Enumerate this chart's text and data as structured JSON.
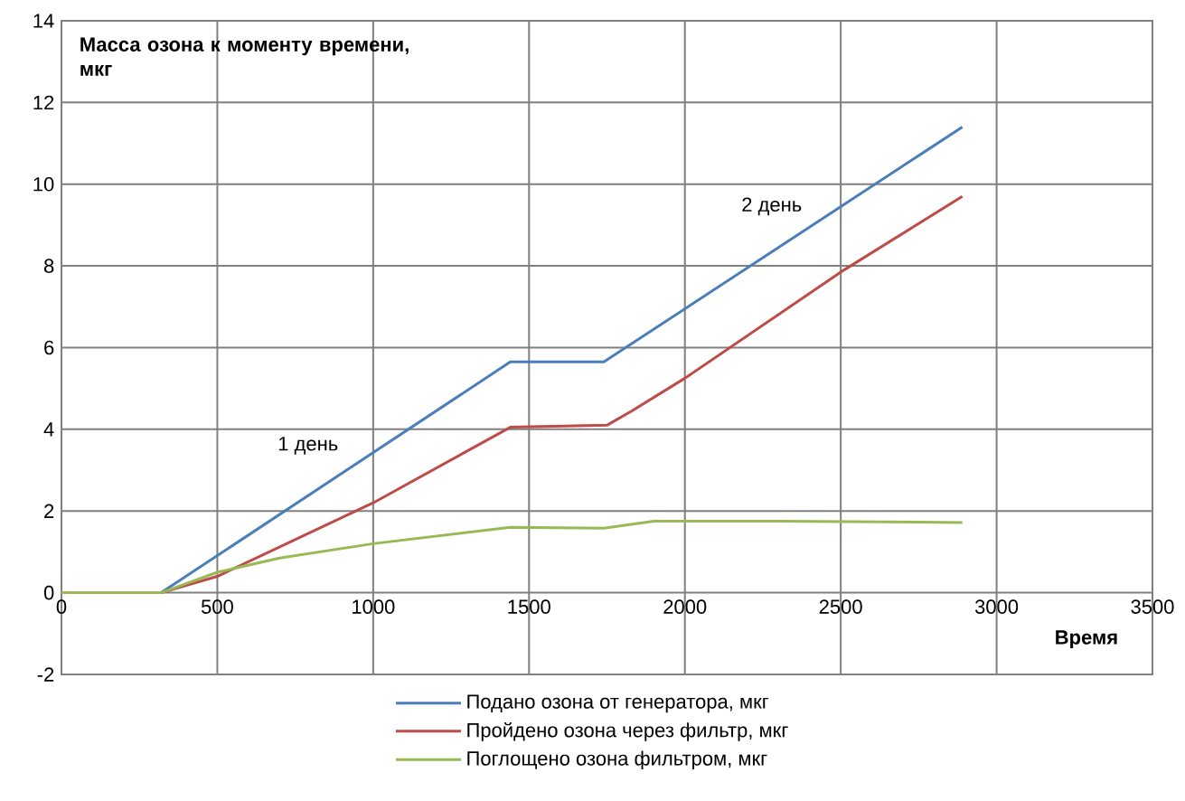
{
  "chart_data": {
    "type": "line",
    "ylabel": "Масса озона к моменту времени, мкг",
    "xlabel": "Время",
    "xlim": [
      0,
      3500
    ],
    "xticks": [
      0,
      500,
      1000,
      1500,
      2000,
      2500,
      3000,
      3500
    ],
    "ylim": [
      -2,
      14
    ],
    "yticks": [
      -2,
      0,
      2,
      4,
      6,
      8,
      10,
      12,
      14
    ],
    "grid": true,
    "legend": "bottom",
    "marker": "none",
    "line_style": "solid",
    "series": [
      {
        "name": "Подано озона от генератора, мкг",
        "color": "#4a7ebb",
        "x": [
          0,
          320,
          1440,
          1740,
          2890
        ],
        "values": [
          0,
          0,
          5.65,
          5.65,
          11.4
        ]
      },
      {
        "name": "Пройдено  озона через фильтр, мкг",
        "color": "#be4b48",
        "x": [
          0,
          320,
          500,
          1000,
          1440,
          1750,
          1830,
          2000,
          2500,
          2890
        ],
        "values": [
          0,
          0,
          0.4,
          2.2,
          4.05,
          4.1,
          4.45,
          5.25,
          7.85,
          9.7
        ]
      },
      {
        "name": "Поглощено  озона фильтром, мкг",
        "color": "#98b954",
        "x": [
          0,
          320,
          500,
          700,
          1000,
          1440,
          1740,
          1900,
          2300,
          2890
        ],
        "values": [
          0,
          0,
          0.5,
          0.85,
          1.2,
          1.6,
          1.58,
          1.75,
          1.75,
          1.72
        ]
      }
    ],
    "annotations": [
      "1 день",
      "2 день"
    ]
  }
}
